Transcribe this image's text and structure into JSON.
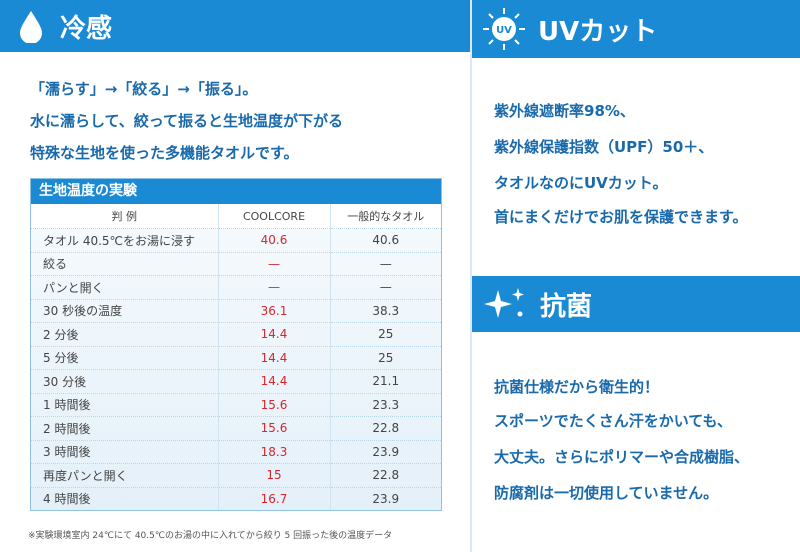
{
  "cool": {
    "title": "冷感",
    "intro": [
      "「濡らす」→「絞る」→「振る」。",
      "水に濡らして、絞って振ると生地温度が下がる",
      "特殊な生地を使った多機能タオルです。"
    ],
    "table": {
      "title": "生地温度の実験",
      "columns": [
        "判 例",
        "COOLCORE",
        "一般的なタオル"
      ],
      "rows": [
        [
          "タオル 40.5℃をお湯に浸す",
          "40.6",
          "40.6"
        ],
        [
          "絞る",
          "—",
          "—"
        ],
        [
          "パンと開く",
          "—",
          "—"
        ],
        [
          "30 秒後の温度",
          "36.1",
          "38.3"
        ],
        [
          "2 分後",
          "14.4",
          "25"
        ],
        [
          "5 分後",
          "14.4",
          "25"
        ],
        [
          "30 分後",
          "14.4",
          "21.1"
        ],
        [
          "1 時間後",
          "15.6",
          "23.3"
        ],
        [
          "2 時間後",
          "15.6",
          "22.8"
        ],
        [
          "3 時間後",
          "18.3",
          "23.9"
        ],
        [
          "再度パンと開く",
          "15",
          "22.8"
        ],
        [
          "4 時間後",
          "16.7",
          "23.9"
        ]
      ]
    },
    "note": "※実験環境室内 24℃にて 40.5℃のお湯の中に入れてから絞り 5 回振った後の温度データ"
  },
  "uv": {
    "title": "UVカット",
    "icon": "UV",
    "lines": [
      "紫外線遮断率98%、",
      "紫外線保護指数（UPF）50＋、",
      "タオルなのにUVカット。",
      "首にまくだけでお肌を保護できます。"
    ]
  },
  "antibac": {
    "title": "抗菌",
    "lines": [
      "抗菌仕様だから衛生的！",
      "スポーツでたくさん汗をかいても、",
      "大丈夫。さらにポリマーや合成樹脂、",
      "防腐剤は一切使用していません。"
    ]
  }
}
